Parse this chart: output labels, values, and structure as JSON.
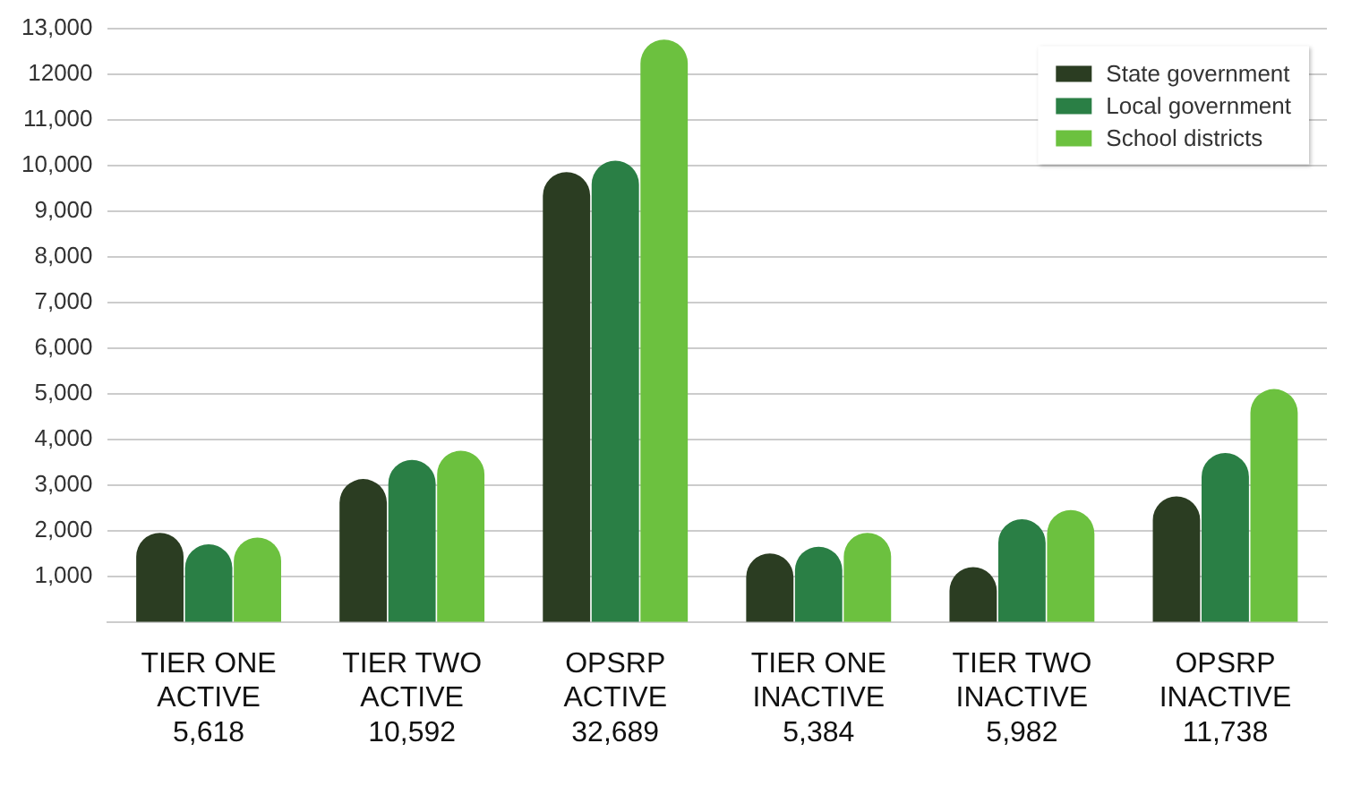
{
  "chart_data": {
    "type": "bar",
    "categories": [
      "TIER ONE\nACTIVE\n5,618",
      "TIER TWO\nACTIVE\n10,592",
      "OPSRP\nACTIVE\n32,689",
      "TIER ONE\nINACTIVE\n5,384",
      "TIER TWO\nINACTIVE\n5,982",
      "OPSRP\nINACTIVE\n11,738"
    ],
    "series": [
      {
        "name": "State government",
        "color": "#2b3d22",
        "values": [
          1950,
          3130,
          9850,
          1500,
          1200,
          2750
        ]
      },
      {
        "name": "Local government",
        "color": "#2a7f45",
        "values": [
          1700,
          3550,
          10100,
          1650,
          2250,
          3700
        ]
      },
      {
        "name": "School districts",
        "color": "#6cc13f",
        "values": [
          1850,
          3750,
          12750,
          1950,
          2450,
          5100
        ]
      }
    ],
    "ylim": [
      0,
      13000
    ],
    "yticks": [
      {
        "value": 1000,
        "label": "1,000"
      },
      {
        "value": 2000,
        "label": "2,000"
      },
      {
        "value": 3000,
        "label": "3,000"
      },
      {
        "value": 4000,
        "label": "4,000"
      },
      {
        "value": 5000,
        "label": "5,000"
      },
      {
        "value": 6000,
        "label": "6,000"
      },
      {
        "value": 7000,
        "label": "7,000"
      },
      {
        "value": 8000,
        "label": "8,000"
      },
      {
        "value": 9000,
        "label": "9,000"
      },
      {
        "value": 10000,
        "label": "10,000"
      },
      {
        "value": 11000,
        "label": "11,000"
      },
      {
        "value": 12000,
        "label": "12000"
      },
      {
        "value": 13000,
        "label": "13,000"
      }
    ],
    "grid": "y",
    "legend": "top right"
  }
}
